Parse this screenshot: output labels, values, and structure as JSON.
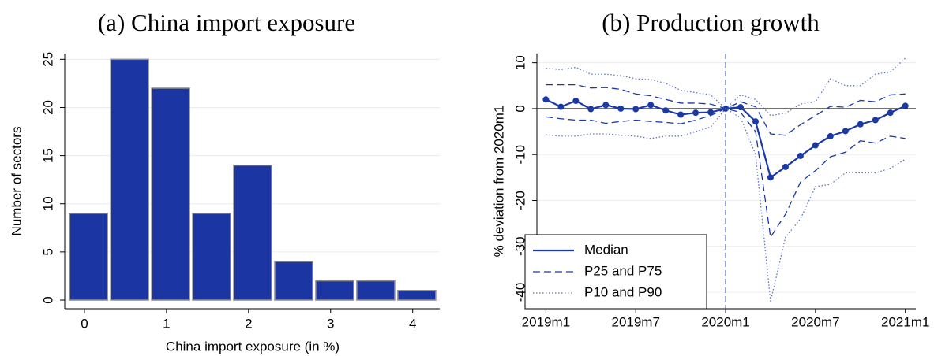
{
  "chart_data": [
    {
      "type": "histogram",
      "title": "(a) China import exposure",
      "xlabel": "China import exposure (in %)",
      "ylabel": "Number of sectors",
      "bins": [
        -0.2,
        0.3,
        0.8,
        1.3,
        1.8,
        2.3,
        2.8,
        3.3,
        3.8,
        4.3
      ],
      "values": [
        9,
        25,
        22,
        9,
        14,
        4,
        2,
        2,
        1
      ],
      "color": "#1b36a3",
      "edgecolor": "#8c8c8c",
      "xlim": [
        -0.24,
        4.33
      ],
      "xticks": [
        0,
        1,
        2,
        3,
        4
      ],
      "ylim": [
        -0.9,
        25.6
      ],
      "yticks": [
        0,
        5,
        10,
        15,
        20,
        25
      ],
      "grid": true
    },
    {
      "type": "line",
      "title": "(b) Production growth",
      "ylabel": "% deviation from 2020m1",
      "categories": [
        "2019m1",
        null,
        null,
        null,
        null,
        null,
        "2019m7",
        null,
        null,
        null,
        null,
        null,
        "2020m1",
        null,
        null,
        null,
        null,
        null,
        "2020m7",
        null,
        null,
        null,
        null,
        null,
        "2021m1"
      ],
      "vline": "2020m1",
      "hline": 0,
      "series": [
        {
          "name": "Median",
          "color": "#1a39a6",
          "dash": "solid",
          "markers": true,
          "values": [
            2.0,
            0.4,
            1.7,
            -0.1,
            0.8,
            0,
            -0.1,
            0.8,
            -0.4,
            -1.3,
            -0.9,
            -0.8,
            0,
            0.3,
            -2.8,
            -15,
            -12.7,
            -10.3,
            -8,
            -6,
            -4.9,
            -3.4,
            -2.5,
            -0.9,
            0.6
          ]
        },
        {
          "name": "P25 and P75",
          "color": "#1a39a6",
          "dash": "dashed",
          "values": [
            -1.8,
            -2.2,
            -2.5,
            -2.5,
            -3.2,
            -2.8,
            -2.5,
            -2.8,
            -3.0,
            -3.3,
            -2.5,
            -1.5,
            0,
            -0.8,
            -5.0,
            -28,
            -23,
            -16,
            -13.5,
            -10.5,
            -9.5,
            -7,
            -7.5,
            -6,
            -6.5
          ],
          "values_upper": [
            5.2,
            5.2,
            5.2,
            4.5,
            4.6,
            4.2,
            3.2,
            2.8,
            2.0,
            1.2,
            1.2,
            1.0,
            0,
            1.5,
            0.4,
            -5.5,
            -5.8,
            -3.5,
            -1.5,
            0.5,
            0.3,
            1.8,
            1.5,
            3.0,
            3.2
          ]
        },
        {
          "name": "P10 and P90",
          "color": "#5d74c4",
          "dash": "dotted",
          "values": [
            -5.7,
            -6,
            -6,
            -5.5,
            -5.5,
            -5.8,
            -6,
            -6.5,
            -6,
            -6,
            -5,
            -4,
            0,
            -2,
            -10,
            -42,
            -28,
            -24,
            -17,
            -16.5,
            -14,
            -14,
            -14,
            -13,
            -11
          ],
          "values_upper": [
            8.8,
            8.5,
            9,
            7.5,
            7.5,
            7.2,
            6.5,
            6.3,
            5.5,
            4,
            3.5,
            3,
            0,
            3,
            2,
            -1.5,
            -1,
            1,
            1.5,
            6.5,
            5,
            5,
            7.5,
            8,
            11
          ]
        }
      ],
      "xlim": [
        -0.6,
        24.7
      ],
      "ylim": [
        -43.6,
        12
      ],
      "yticks": [
        10,
        0,
        -10,
        -20,
        -30,
        -40
      ],
      "grid": true,
      "legend": "lower left"
    }
  ]
}
